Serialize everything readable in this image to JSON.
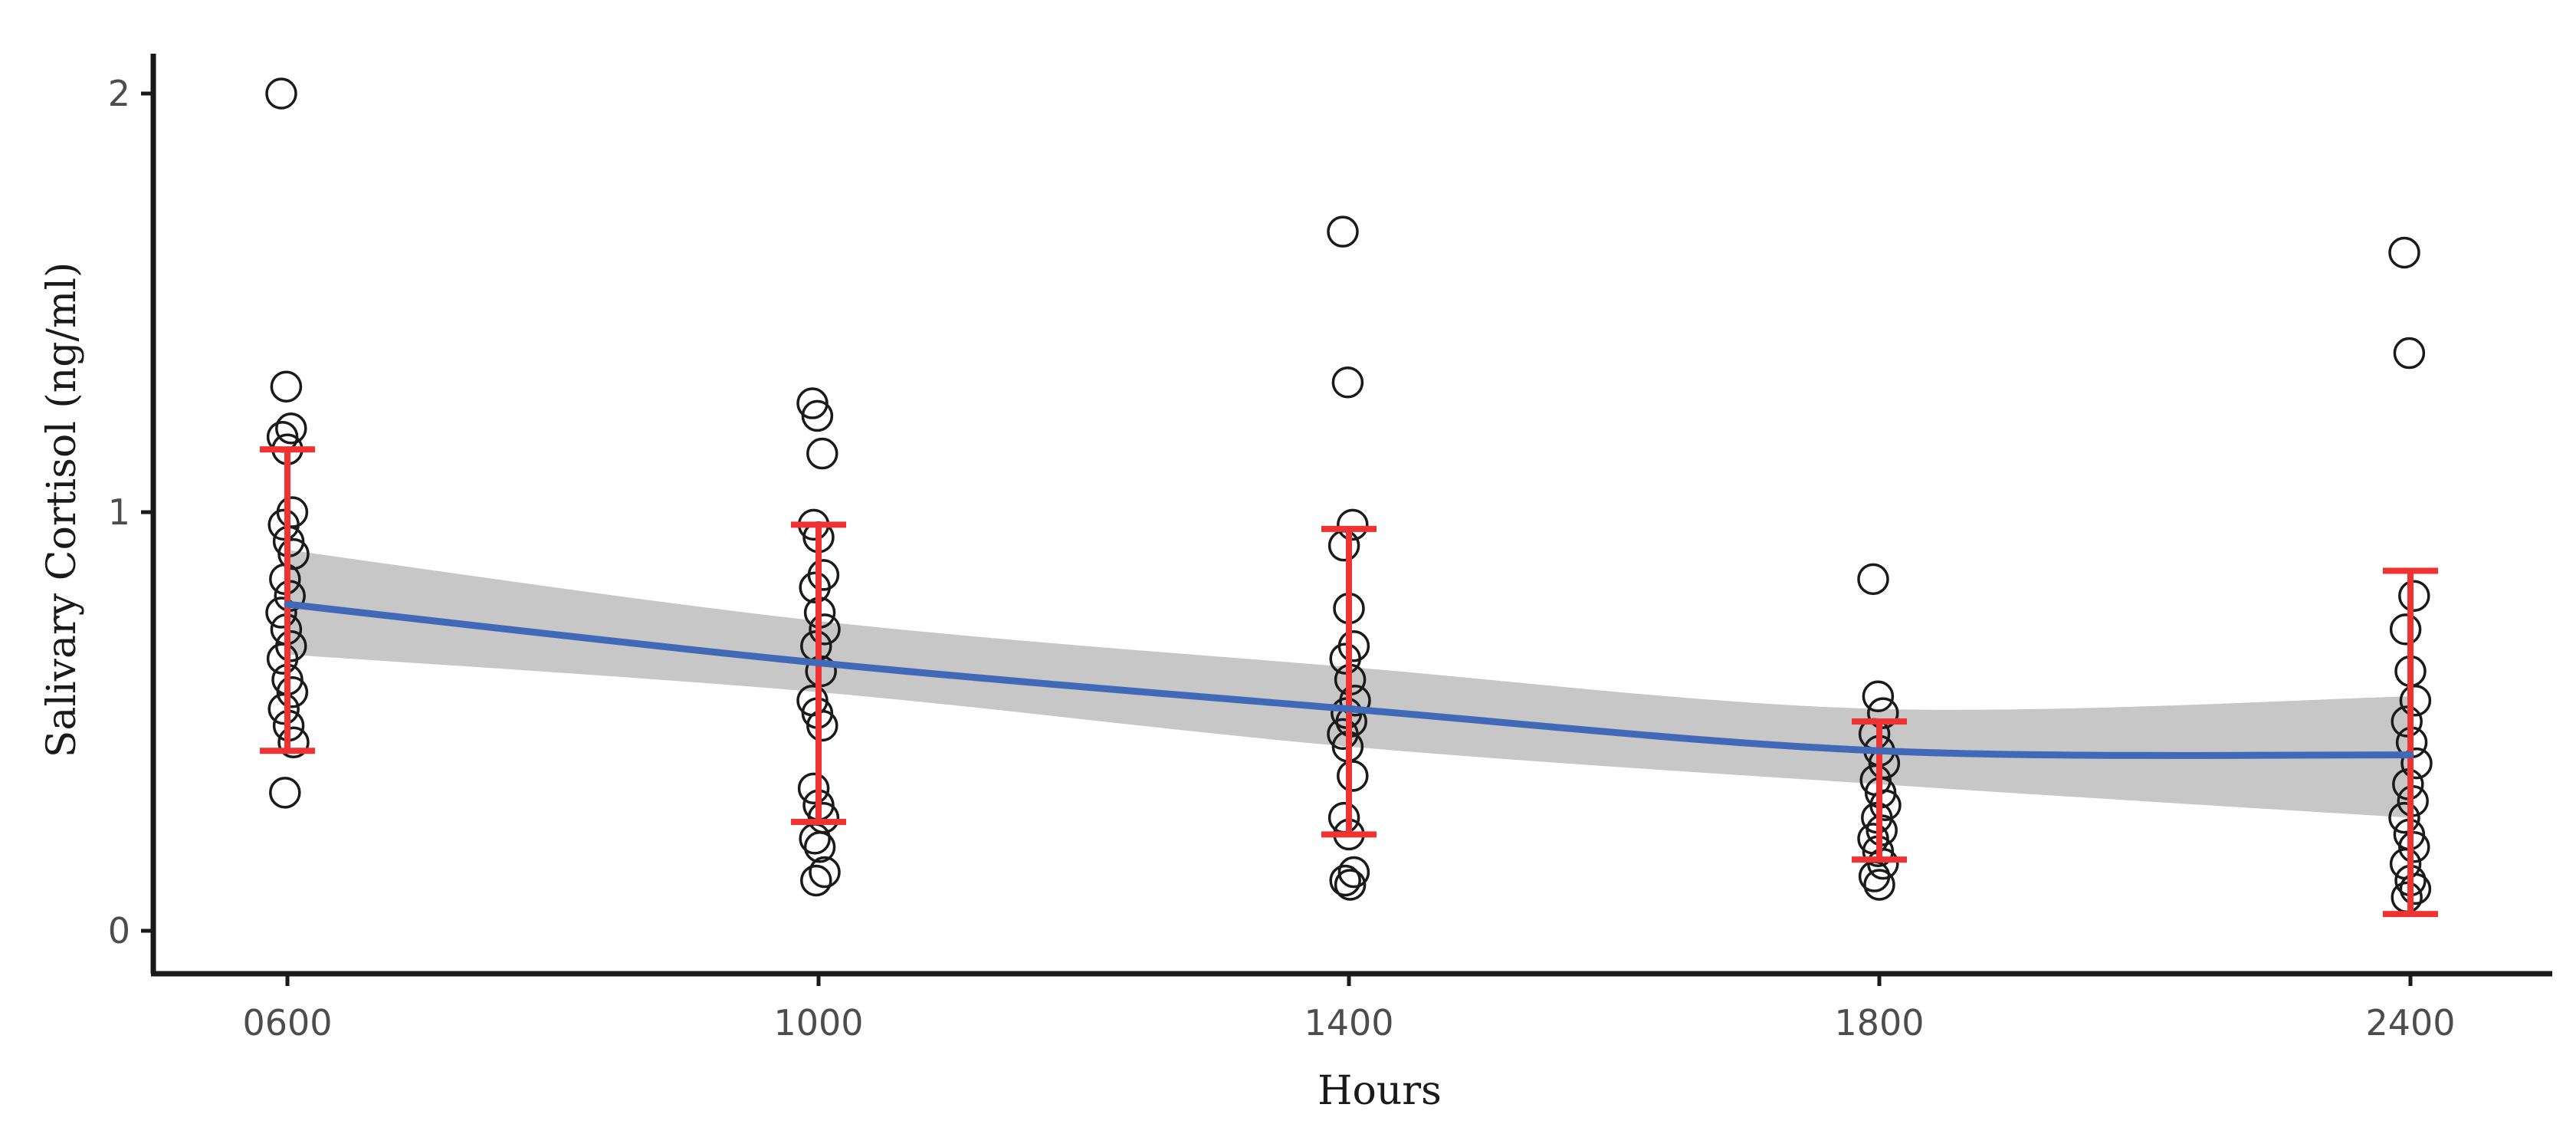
{
  "chart_data": {
    "type": "scatter",
    "title": "",
    "xlabel": "Hours",
    "ylabel": "Salivary Cortisol (ng/ml)",
    "categories": [
      "0600",
      "1000",
      "1400",
      "1800",
      "2400"
    ],
    "yticks": [
      "0",
      "1",
      "2"
    ],
    "ylim": [
      -0.1,
      2.1
    ],
    "grid": false,
    "legend": "none",
    "points": [
      {
        "x": "0600",
        "values": [
          2.0,
          1.3,
          1.2,
          1.18,
          1.15,
          1.0,
          0.97,
          0.93,
          0.9,
          0.84,
          0.8,
          0.76,
          0.72,
          0.68,
          0.65,
          0.6,
          0.57,
          0.53,
          0.49,
          0.45,
          0.33
        ]
      },
      {
        "x": "1000",
        "values": [
          1.26,
          1.23,
          1.14,
          0.97,
          0.94,
          0.85,
          0.82,
          0.76,
          0.72,
          0.68,
          0.62,
          0.55,
          0.52,
          0.49,
          0.34,
          0.3,
          0.27,
          0.22,
          0.2,
          0.14,
          0.12
        ]
      },
      {
        "x": "1400",
        "values": [
          1.67,
          1.31,
          0.97,
          0.92,
          0.77,
          0.68,
          0.65,
          0.6,
          0.55,
          0.52,
          0.5,
          0.47,
          0.44,
          0.37,
          0.27,
          0.23,
          0.14,
          0.12,
          0.11
        ]
      },
      {
        "x": "1800",
        "values": [
          0.84,
          0.56,
          0.52,
          0.47,
          0.43,
          0.4,
          0.36,
          0.33,
          0.3,
          0.27,
          0.24,
          0.22,
          0.19,
          0.16,
          0.13,
          0.11
        ]
      },
      {
        "x": "2400",
        "values": [
          1.62,
          1.38,
          0.8,
          0.72,
          0.62,
          0.55,
          0.5,
          0.45,
          0.4,
          0.35,
          0.31,
          0.27,
          0.23,
          0.2,
          0.16,
          0.12,
          0.1,
          0.08
        ]
      }
    ],
    "error_bars": [
      {
        "x": "0600",
        "upper": 1.15,
        "lower": 0.43
      },
      {
        "x": "1000",
        "upper": 0.97,
        "lower": 0.26
      },
      {
        "x": "1400",
        "upper": 0.96,
        "lower": 0.23
      },
      {
        "x": "1800",
        "upper": 0.5,
        "lower": 0.17
      },
      {
        "x": "2400",
        "upper": 0.86,
        "lower": 0.04
      }
    ],
    "fit_line": [
      0.78,
      0.64,
      0.53,
      0.43,
      0.42
    ],
    "fit_band": [
      {
        "x": "0600",
        "lower": 0.66,
        "upper": 0.91
      },
      {
        "x": "1000",
        "lower": 0.57,
        "upper": 0.74
      },
      {
        "x": "1400",
        "lower": 0.44,
        "upper": 0.63
      },
      {
        "x": "1800",
        "lower": 0.35,
        "upper": 0.53
      },
      {
        "x": "2400",
        "lower": 0.27,
        "upper": 0.56
      }
    ],
    "colors": {
      "points": "#1a1a1a",
      "error_bars": "#f03232",
      "fit_line": "#4169b8",
      "fit_band": "#bdbdbd",
      "axis": "#1a1a1a"
    }
  }
}
